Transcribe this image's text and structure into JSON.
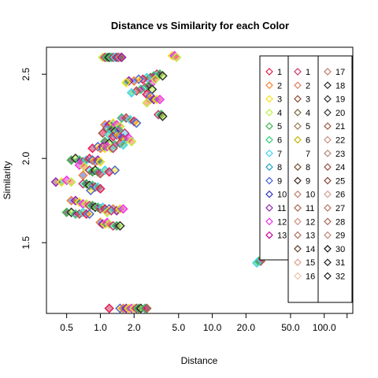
{
  "chart_data": {
    "type": "scatter",
    "title": "Distance vs Similarity for each Color",
    "xlabel": "Distance",
    "ylabel": "Similarity",
    "x_scale": "log",
    "xlim": [
      0.33,
      180
    ],
    "ylim": [
      1.08,
      2.66
    ],
    "x_ticks": [
      {
        "value": 0.5,
        "label": "0.5"
      },
      {
        "value": 1,
        "label": "1.0"
      },
      {
        "value": 2,
        "label": "2.0"
      },
      {
        "value": 5,
        "label": "5.0"
      },
      {
        "value": 10,
        "label": "10.0"
      },
      {
        "value": 20,
        "label": "20.0"
      },
      {
        "value": 50,
        "label": "50.0"
      },
      {
        "value": 100,
        "label": "100.0"
      },
      {
        "value": 160,
        "label": ""
      }
    ],
    "y_ticks": [
      {
        "value": 1.5,
        "label": "1.5"
      },
      {
        "value": 2.0,
        "label": "2.0"
      },
      {
        "value": 2.5,
        "label": "2.5"
      }
    ],
    "legend_placement": "top-right",
    "legend_columns": [
      {
        "labels": [
          "1",
          "2",
          "3",
          "4",
          "5",
          "6",
          "7",
          "8",
          "9",
          "10",
          "11",
          "12",
          "13"
        ],
        "colors": [
          "#e6194b",
          "#f58231",
          "#ffe119",
          "#bfef45",
          "#3cb44b",
          "#2ecc71",
          "#42d4f4",
          "#1fa3c8",
          "#4363d8",
          "#3333cc",
          "#911eb4",
          "#f032e6",
          "#cc0099"
        ]
      },
      {
        "labels": [
          "1",
          "2",
          "3",
          "4",
          "5",
          "6",
          "7",
          "8",
          "9",
          "10",
          "11",
          "12",
          "13",
          "14",
          "15",
          "16"
        ],
        "colors": [
          "#cc3366",
          "#e08060",
          "#8a4a30",
          "#7a6a40",
          "#9a7a55",
          "#c8b400",
          "#ffffff",
          "#705030",
          "#402820",
          "#c08070",
          "#a06050",
          "#d09080",
          "#b07060",
          "#604030",
          "#e0a090",
          "#f0c0b0"
        ]
      },
      {
        "labels": [
          "17",
          "18",
          "19",
          "20",
          "21",
          "22",
          "23",
          "24",
          "25",
          "26",
          "27",
          "28",
          "29",
          "30",
          "31",
          "32"
        ],
        "colors": [
          "#c07868",
          "#2a2a2a",
          "#303030",
          "#383838",
          "#a05848",
          "#c89080",
          "#b88878",
          "#985040",
          "#884838",
          "#d0a090",
          "#b87060",
          "#a86858",
          "#c08878",
          "#101010",
          "#202020",
          "#181818"
        ]
      }
    ],
    "series_palette": [
      "#e6194b",
      "#f58231",
      "#ffe119",
      "#bfef45",
      "#3cb44b",
      "#2ecc71",
      "#42d4f4",
      "#4363d8",
      "#911eb4",
      "#f032e6",
      "#cc3366",
      "#2a2a2a",
      "#a05848"
    ],
    "points": [
      {
        "x": 1.05,
        "y": 2.6
      },
      {
        "x": 1.1,
        "y": 2.6
      },
      {
        "x": 1.15,
        "y": 2.6
      },
      {
        "x": 1.2,
        "y": 2.6
      },
      {
        "x": 1.25,
        "y": 2.6
      },
      {
        "x": 1.3,
        "y": 2.6
      },
      {
        "x": 1.35,
        "y": 2.6
      },
      {
        "x": 1.4,
        "y": 2.6
      },
      {
        "x": 1.45,
        "y": 2.6
      },
      {
        "x": 1.5,
        "y": 2.6
      },
      {
        "x": 1.55,
        "y": 2.6
      },
      {
        "x": 4.4,
        "y": 2.61
      },
      {
        "x": 4.6,
        "y": 2.61
      },
      {
        "x": 4.8,
        "y": 2.6
      },
      {
        "x": 3.2,
        "y": 2.5
      },
      {
        "x": 3.4,
        "y": 2.5
      },
      {
        "x": 3.6,
        "y": 2.49
      },
      {
        "x": 3.0,
        "y": 2.49
      },
      {
        "x": 2.8,
        "y": 2.48
      },
      {
        "x": 2.6,
        "y": 2.48
      },
      {
        "x": 2.4,
        "y": 2.47
      },
      {
        "x": 2.2,
        "y": 2.47
      },
      {
        "x": 2.0,
        "y": 2.46
      },
      {
        "x": 1.8,
        "y": 2.46
      },
      {
        "x": 1.7,
        "y": 2.45
      },
      {
        "x": 2.9,
        "y": 2.45
      },
      {
        "x": 3.1,
        "y": 2.47
      },
      {
        "x": 2.5,
        "y": 2.42
      },
      {
        "x": 2.7,
        "y": 2.43
      },
      {
        "x": 2.9,
        "y": 2.41
      },
      {
        "x": 2.3,
        "y": 2.41
      },
      {
        "x": 2.1,
        "y": 2.4
      },
      {
        "x": 1.9,
        "y": 2.39
      },
      {
        "x": 2.6,
        "y": 2.38
      },
      {
        "x": 2.8,
        "y": 2.37
      },
      {
        "x": 2.8,
        "y": 2.35
      },
      {
        "x": 3.0,
        "y": 2.35
      },
      {
        "x": 3.2,
        "y": 2.35
      },
      {
        "x": 3.4,
        "y": 2.35
      },
      {
        "x": 2.6,
        "y": 2.33
      },
      {
        "x": 3.3,
        "y": 2.26
      },
      {
        "x": 3.5,
        "y": 2.26
      },
      {
        "x": 3.6,
        "y": 2.25
      },
      {
        "x": 1.55,
        "y": 2.24
      },
      {
        "x": 1.7,
        "y": 2.24
      },
      {
        "x": 1.85,
        "y": 2.23
      },
      {
        "x": 2.0,
        "y": 2.22
      },
      {
        "x": 2.1,
        "y": 2.21
      },
      {
        "x": 1.1,
        "y": 2.2
      },
      {
        "x": 1.2,
        "y": 2.2
      },
      {
        "x": 1.3,
        "y": 2.21
      },
      {
        "x": 1.4,
        "y": 2.2
      },
      {
        "x": 1.5,
        "y": 2.19
      },
      {
        "x": 1.15,
        "y": 2.18
      },
      {
        "x": 1.25,
        "y": 2.17
      },
      {
        "x": 1.35,
        "y": 2.16
      },
      {
        "x": 1.45,
        "y": 2.17
      },
      {
        "x": 1.05,
        "y": 2.15
      },
      {
        "x": 1.2,
        "y": 2.14
      },
      {
        "x": 1.3,
        "y": 2.13
      },
      {
        "x": 1.4,
        "y": 2.14
      },
      {
        "x": 1.5,
        "y": 2.13
      },
      {
        "x": 1.6,
        "y": 2.12
      },
      {
        "x": 1.7,
        "y": 2.11
      },
      {
        "x": 1.8,
        "y": 2.12
      },
      {
        "x": 1.9,
        "y": 2.1
      },
      {
        "x": 1.65,
        "y": 2.15
      },
      {
        "x": 1.1,
        "y": 2.1
      },
      {
        "x": 1.2,
        "y": 2.09
      },
      {
        "x": 1.35,
        "y": 2.08
      },
      {
        "x": 1.5,
        "y": 2.09
      },
      {
        "x": 1.6,
        "y": 2.08
      },
      {
        "x": 0.85,
        "y": 2.06
      },
      {
        "x": 0.95,
        "y": 2.07
      },
      {
        "x": 1.0,
        "y": 2.06
      },
      {
        "x": 1.05,
        "y": 2.07
      },
      {
        "x": 1.1,
        "y": 2.06
      },
      {
        "x": 1.15,
        "y": 2.07
      },
      {
        "x": 1.25,
        "y": 2.06
      },
      {
        "x": 1.3,
        "y": 2.06
      },
      {
        "x": 0.55,
        "y": 1.99
      },
      {
        "x": 0.6,
        "y": 2.0
      },
      {
        "x": 0.65,
        "y": 1.99
      },
      {
        "x": 0.7,
        "y": 1.98
      },
      {
        "x": 0.75,
        "y": 1.99
      },
      {
        "x": 0.8,
        "y": 2.0
      },
      {
        "x": 0.85,
        "y": 1.99
      },
      {
        "x": 0.9,
        "y": 1.98
      },
      {
        "x": 0.95,
        "y": 1.99
      },
      {
        "x": 1.0,
        "y": 1.98
      },
      {
        "x": 0.65,
        "y": 1.96
      },
      {
        "x": 0.72,
        "y": 1.95
      },
      {
        "x": 0.8,
        "y": 1.93
      },
      {
        "x": 0.85,
        "y": 1.92
      },
      {
        "x": 0.9,
        "y": 1.93
      },
      {
        "x": 0.95,
        "y": 1.92
      },
      {
        "x": 1.0,
        "y": 1.91
      },
      {
        "x": 1.1,
        "y": 1.93
      },
      {
        "x": 1.2,
        "y": 1.92
      },
      {
        "x": 1.35,
        "y": 1.93
      },
      {
        "x": 0.7,
        "y": 1.9
      },
      {
        "x": 0.4,
        "y": 1.86
      },
      {
        "x": 0.45,
        "y": 1.86
      },
      {
        "x": 0.5,
        "y": 1.87
      },
      {
        "x": 0.55,
        "y": 1.86
      },
      {
        "x": 0.7,
        "y": 1.85
      },
      {
        "x": 0.75,
        "y": 1.85
      },
      {
        "x": 0.8,
        "y": 1.84
      },
      {
        "x": 0.85,
        "y": 1.84
      },
      {
        "x": 0.9,
        "y": 1.83
      },
      {
        "x": 0.95,
        "y": 1.83
      },
      {
        "x": 1.0,
        "y": 1.82
      },
      {
        "x": 0.82,
        "y": 1.81
      },
      {
        "x": 0.55,
        "y": 1.75
      },
      {
        "x": 0.6,
        "y": 1.75
      },
      {
        "x": 0.65,
        "y": 1.74
      },
      {
        "x": 0.7,
        "y": 1.73
      },
      {
        "x": 0.75,
        "y": 1.73
      },
      {
        "x": 0.8,
        "y": 1.72
      },
      {
        "x": 0.85,
        "y": 1.72
      },
      {
        "x": 0.9,
        "y": 1.71
      },
      {
        "x": 0.95,
        "y": 1.71
      },
      {
        "x": 1.0,
        "y": 1.7
      },
      {
        "x": 1.05,
        "y": 1.71
      },
      {
        "x": 1.1,
        "y": 1.7
      },
      {
        "x": 1.2,
        "y": 1.7
      },
      {
        "x": 1.3,
        "y": 1.7
      },
      {
        "x": 1.4,
        "y": 1.69
      },
      {
        "x": 1.5,
        "y": 1.7
      },
      {
        "x": 1.6,
        "y": 1.7
      },
      {
        "x": 1.15,
        "y": 1.68
      },
      {
        "x": 1.25,
        "y": 1.69
      },
      {
        "x": 0.5,
        "y": 1.68
      },
      {
        "x": 0.55,
        "y": 1.68
      },
      {
        "x": 0.6,
        "y": 1.67
      },
      {
        "x": 0.65,
        "y": 1.67
      },
      {
        "x": 0.7,
        "y": 1.68
      },
      {
        "x": 0.75,
        "y": 1.67
      },
      {
        "x": 0.8,
        "y": 1.67
      },
      {
        "x": 1.0,
        "y": 1.62
      },
      {
        "x": 1.05,
        "y": 1.61
      },
      {
        "x": 1.1,
        "y": 1.61
      },
      {
        "x": 1.15,
        "y": 1.62
      },
      {
        "x": 1.2,
        "y": 1.61
      },
      {
        "x": 1.3,
        "y": 1.6
      },
      {
        "x": 1.4,
        "y": 1.6
      },
      {
        "x": 1.5,
        "y": 1.6
      },
      {
        "x": 26,
        "y": 1.39
      },
      {
        "x": 27,
        "y": 1.39
      },
      {
        "x": 25,
        "y": 1.38
      },
      {
        "x": 1.2,
        "y": 1.11
      },
      {
        "x": 1.5,
        "y": 1.11
      },
      {
        "x": 1.6,
        "y": 1.11
      },
      {
        "x": 1.7,
        "y": 1.11
      },
      {
        "x": 1.8,
        "y": 1.11
      },
      {
        "x": 1.9,
        "y": 1.11
      },
      {
        "x": 2.0,
        "y": 1.11
      },
      {
        "x": 2.1,
        "y": 1.11
      },
      {
        "x": 2.2,
        "y": 1.11
      },
      {
        "x": 2.3,
        "y": 1.11
      },
      {
        "x": 2.5,
        "y": 1.11
      },
      {
        "x": 2.6,
        "y": 1.11
      }
    ]
  }
}
